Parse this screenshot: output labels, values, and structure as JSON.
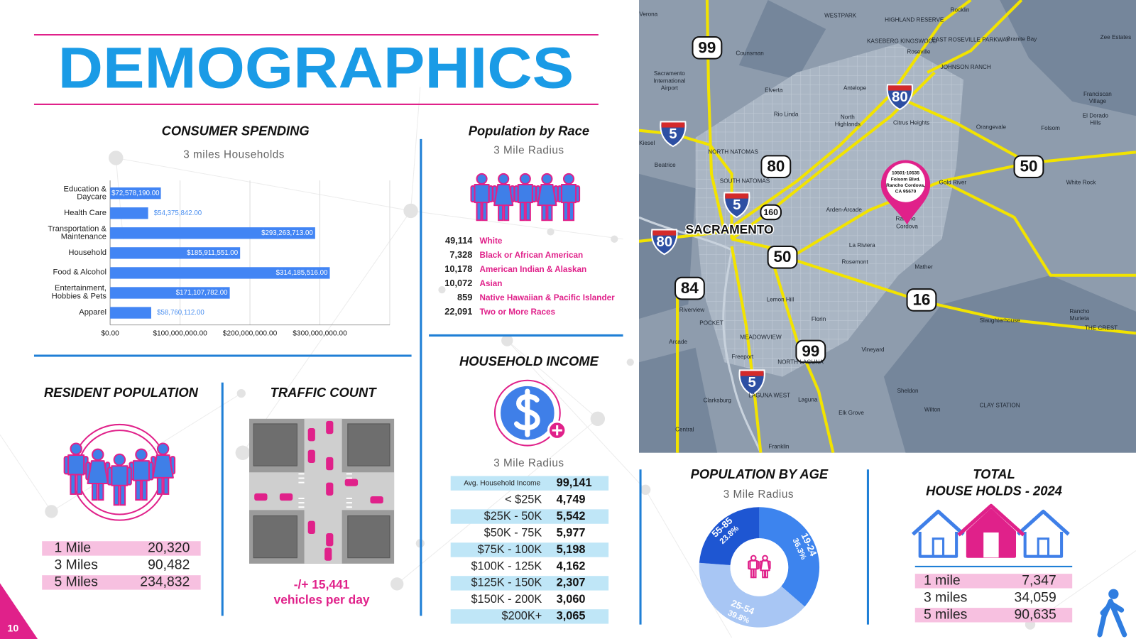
{
  "page_number": "10",
  "header": {
    "title": "DEMOGRAPHICS"
  },
  "chart_data": [
    {
      "type": "bar",
      "orientation": "horizontal",
      "title": "CONSUMER SPENDING",
      "subtitle": "3 miles Households",
      "categories": [
        "Education & Daycare",
        "Health Care",
        "Transportation & Maintenance",
        "Household",
        "Food & Alcohol",
        "Entertainment, Hobbies & Pets",
        "Apparel"
      ],
      "values": [
        72578190,
        54375842,
        293263713,
        185911551,
        314185516,
        171107782,
        58760112
      ],
      "value_labels": [
        "$72,578,190.00",
        "$54,375,842.00",
        "$293,263,713.00",
        "$185,911,551.00",
        "$314,185,516.00",
        "$171,107,782.00",
        "$58,760,112.00"
      ],
      "color": "#4285f4",
      "xlim": [
        0,
        400000000
      ],
      "xticks": [
        {
          "value": 0,
          "label": "$0.00"
        },
        {
          "value": 100000000,
          "label": "$100,000,000.00"
        },
        {
          "value": 200000000,
          "label": "$200,000,000.00"
        },
        {
          "value": 300000000,
          "label": "$300,000,000.00"
        }
      ],
      "grid": true
    },
    {
      "type": "donut",
      "title": "POPULATION BY AGE",
      "subtitle": "3 Mile Radius",
      "categories": [
        "19-24",
        "25-54",
        "55-85"
      ],
      "values": [
        36.3,
        39.8,
        23.8
      ],
      "value_labels": [
        "36.3%",
        "39.8%",
        "23.8%"
      ],
      "colors": [
        "#3d84ee",
        "#a8c6f4",
        "#1e56d2"
      ]
    }
  ],
  "population_by_race": {
    "title": "Population by Race",
    "subtitle": "3 Mile Radius",
    "rows": [
      [
        "49,114",
        "White"
      ],
      [
        "7,328",
        "Black or African American"
      ],
      [
        "10,178",
        "American Indian & Alaskan"
      ],
      [
        "10,072",
        "Asian"
      ],
      [
        "859",
        "Native Hawaiian & Pacific Islander"
      ],
      [
        "22,091",
        "Two or More Races"
      ]
    ]
  },
  "household_income": {
    "title": "HOUSEHOLD INCOME",
    "subtitle": "3 Mile Radius",
    "rows": [
      [
        "Avg. Household Income",
        "99,141"
      ],
      [
        "< $25K",
        "4,749"
      ],
      [
        "$25K - 50K",
        "5,542"
      ],
      [
        "$50K - 75K",
        "5,977"
      ],
      [
        "$75K - 100K",
        "5,198"
      ],
      [
        "$100K - 125K",
        "4,162"
      ],
      [
        "$125K - 150K",
        "2,307"
      ],
      [
        "$150K - 200K",
        "3,060"
      ],
      [
        "$200K+",
        "3,065"
      ]
    ]
  },
  "resident_population": {
    "title": "RESIDENT POPULATION",
    "rows": [
      [
        "1 Mile",
        "20,320"
      ],
      [
        "3 Miles",
        "90,482"
      ],
      [
        "5 Miles",
        "234,832"
      ]
    ]
  },
  "traffic_count": {
    "title": "TRAFFIC COUNT",
    "count": "-/+ 15,441",
    "unit": "vehicles per day"
  },
  "total_households": {
    "title": [
      "TOTAL",
      "HOUSE HOLDS - 2024"
    ],
    "rows": [
      [
        "1 mile",
        "7,347"
      ],
      [
        "3 miles",
        "34,059"
      ],
      [
        "5 miles",
        "90,635"
      ]
    ]
  },
  "map": {
    "city": "SACRAMENTO",
    "highways": [
      "99",
      "80",
      "5",
      "80",
      "50",
      "160",
      "5",
      "80",
      "50",
      "84",
      "16",
      "99",
      "5"
    ],
    "places": [
      "Verona",
      "WESTPARK",
      "HIGHLAND RESERVE",
      "Rocklin",
      "KASEBERG KINGSWOOD",
      "EAST ROSEVILLE PARKWAY",
      "Roseville",
      "Granite Bay",
      "Zee Estates",
      "Counsman",
      "JOHNSON RANCH",
      "Sacramento",
      "International",
      "Airport",
      "Elverta",
      "Antelope",
      "Franciscan",
      "Village",
      "Rio Linda",
      "North",
      "Highlands",
      "Citrus Heights",
      "Orangevale",
      "Folsom",
      "El Dorado",
      "Hills",
      "NORTH NATOMAS",
      "Kiesel",
      "Beatrice",
      "SOUTH NATOMAS",
      "Gold River",
      "White Rock",
      "Arden-Arcade",
      "Rancho",
      "Cordova",
      "La Riviera",
      "Rosemont",
      "Mather",
      "Lemon Hill",
      "Riverview",
      "Florin",
      "Slaughterhouse",
      "Rancho",
      "Murieta",
      "THE CREST",
      "POCKET",
      "MEADOWVIEW",
      "Arcade",
      "Vineyard",
      "Freeport",
      "NORTH LAGUNA",
      "LAGUNA WEST",
      "Laguna",
      "Sheldon",
      "Clarksburg",
      "Elk Grove",
      "Wilton",
      "CLAY STATION",
      "Central",
      "Franklin"
    ],
    "site_address": [
      "10501-10535",
      "Folsom Blvd.",
      "Rancho Cordova,",
      "CA 95670"
    ]
  }
}
